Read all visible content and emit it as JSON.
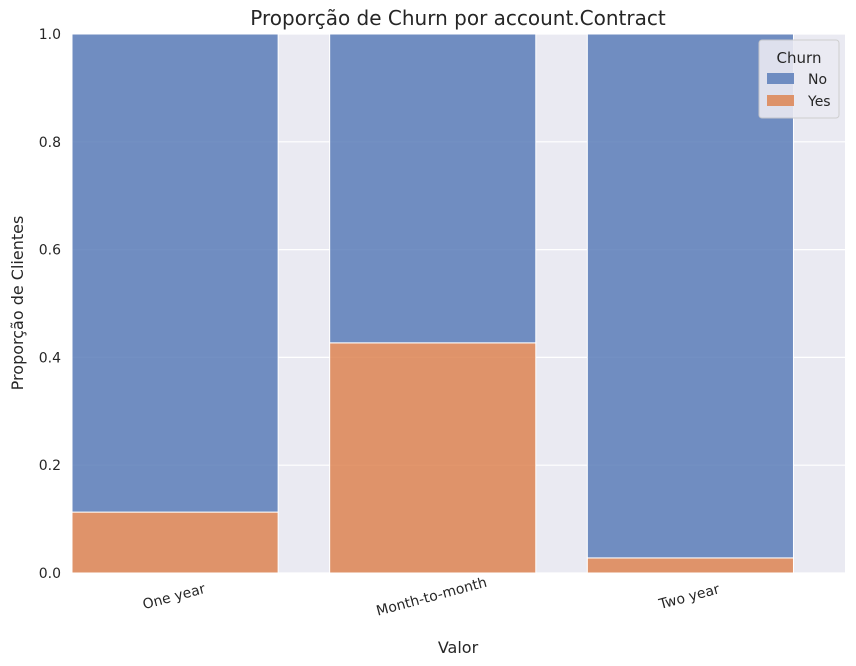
{
  "chart_data": {
    "type": "bar",
    "stacked": true,
    "normalized": true,
    "title": "Proporção de Churn por account.Contract",
    "xlabel": "Valor",
    "ylabel": "Proporção de Clientes",
    "categories": [
      "One year",
      "Month-to-month",
      "Two year"
    ],
    "series": [
      {
        "name": "No",
        "values": [
          0.887,
          0.573,
          0.972
        ],
        "color": "#5a7db8"
      },
      {
        "name": "Yes",
        "values": [
          0.113,
          0.427,
          0.028
        ],
        "color": "#dd8452"
      }
    ],
    "ylim": [
      0,
      1
    ],
    "yticks": [
      "0.0",
      "0.2",
      "0.4",
      "0.6",
      "0.8",
      "1.0"
    ],
    "grid": true,
    "legend": {
      "title": "Churn",
      "placement": "top-right"
    },
    "colors": {
      "background": "#eaeaf2",
      "grid": "#ffffff"
    }
  }
}
